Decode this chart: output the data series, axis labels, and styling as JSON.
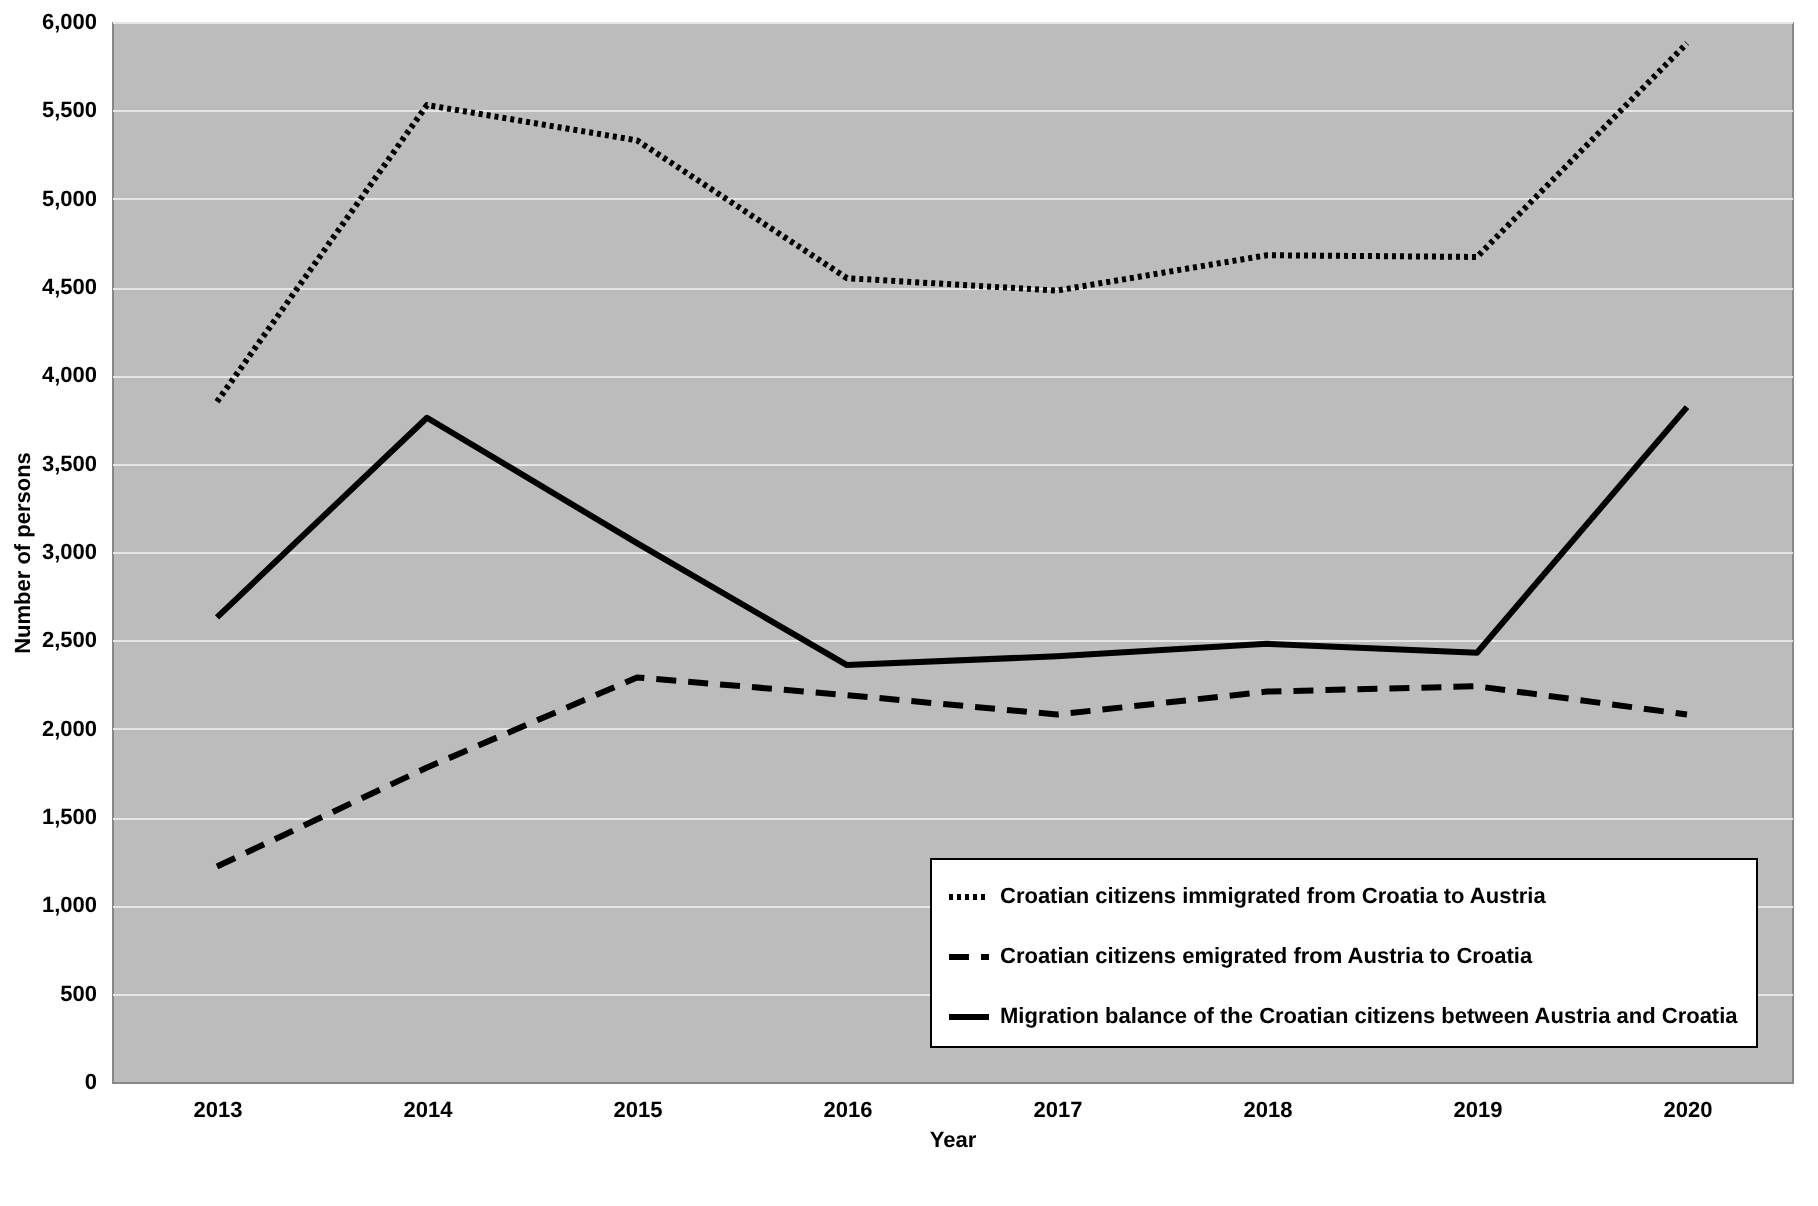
{
  "chart_data": {
    "type": "line",
    "xlabel": "Year",
    "ylabel": "Number of persons",
    "categories": [
      "2013",
      "2014",
      "2015",
      "2016",
      "2017",
      "2018",
      "2019",
      "2020"
    ],
    "series": [
      {
        "name": "Croatian citizens immigrated from Croatia to Austria",
        "color": "#000000",
        "line_style": "dotted",
        "values": [
          3850,
          5530,
          5330,
          4550,
          4480,
          4680,
          4670,
          5880
        ]
      },
      {
        "name": "Croatian citizens emigrated from Austria to Croatia",
        "color": "#000000",
        "line_style": "dashed",
        "values": [
          1220,
          1780,
          2290,
          2190,
          2080,
          2210,
          2240,
          2080
        ]
      },
      {
        "name": "Migration balance of the Croatian citizens between Austria and Croatia",
        "color": "#000000",
        "line_style": "solid",
        "values": [
          2630,
          3760,
          3050,
          2360,
          2410,
          2480,
          2430,
          3820
        ]
      }
    ],
    "ylim": [
      0,
      6000
    ],
    "yticks": [
      0,
      500,
      {
        "value": 1000,
        "label": "1,000"
      },
      {
        "value": 1500,
        "label": "1,500"
      },
      {
        "value": 2000,
        "label": "2,000"
      },
      {
        "value": 2500,
        "label": "2,500"
      },
      {
        "value": 3000,
        "label": "3,000"
      },
      {
        "value": 3500,
        "label": "3,500"
      },
      {
        "value": 4000,
        "label": "4,000"
      },
      {
        "value": 4500,
        "label": "4,500"
      },
      {
        "value": 5000,
        "label": "5,000"
      },
      {
        "value": 5500,
        "label": "5,500"
      },
      {
        "value": 6000,
        "label": "6,000"
      }
    ],
    "grid": "y",
    "legend": "bottom right",
    "marker": "none"
  }
}
